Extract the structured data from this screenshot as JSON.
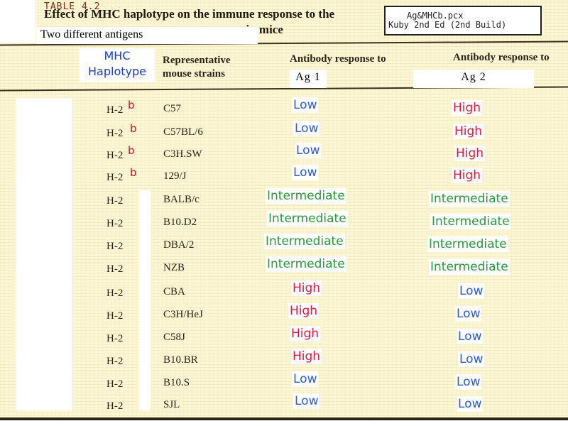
{
  "table": {
    "number": "TABLE 4.2",
    "title_line1": "Effect of MHC haplotype on the immune response to the",
    "title_line2_visible": ". in mice"
  },
  "label_box": {
    "line1": "Ag&MHCb.pcx",
    "line2": "Kuby 2nd Ed (2nd Build)"
  },
  "overlay_label": "Two different antigens",
  "headers": {
    "mhc": [
      "MHC",
      "Haplotype"
    ],
    "strains": [
      "Representative",
      "mouse strains"
    ],
    "antibody_col1": "Antibody response to",
    "antibody_col2": "Antibody response to",
    "ag1": "Ag 1",
    "ag2": "Ag 2"
  },
  "rows": [
    {
      "haplotype": "H-2",
      "sup": "b",
      "strain": "C57",
      "ag1": "Low",
      "ag2": "High"
    },
    {
      "haplotype": "H-2",
      "sup": "b",
      "strain": "C57BL/6",
      "ag1": "Low",
      "ag2": "High"
    },
    {
      "haplotype": "H-2",
      "sup": "b",
      "strain": "C3H.SW",
      "ag1": "Low",
      "ag2": "High"
    },
    {
      "haplotype": "H-2",
      "sup": "b",
      "strain": "129/J",
      "ag1": "Low",
      "ag2": "High"
    },
    {
      "haplotype": "H-2",
      "sup": "",
      "strain": "BALB/c",
      "ag1": "Intermediate",
      "ag2": "Intermediate"
    },
    {
      "haplotype": "H-2",
      "sup": "",
      "strain": "B10.D2",
      "ag1": "Intermediate",
      "ag2": "Intermediate"
    },
    {
      "haplotype": "H-2",
      "sup": "",
      "strain": "DBA/2",
      "ag1": "Intermediate",
      "ag2": "Intermediate"
    },
    {
      "haplotype": "H-2",
      "sup": "",
      "strain": "NZB",
      "ag1": "Intermediate",
      "ag2": "Intermediate"
    },
    {
      "haplotype": "H-2",
      "sup": "",
      "strain": "CBA",
      "ag1": "High",
      "ag2": "Low"
    },
    {
      "haplotype": "H-2",
      "sup": "",
      "strain": "C3H/HeJ",
      "ag1": "High",
      "ag2": "Low"
    },
    {
      "haplotype": "H-2",
      "sup": "",
      "strain": "C58J",
      "ag1": "High",
      "ag2": "Low"
    },
    {
      "haplotype": "H-2",
      "sup": "",
      "strain": "B10.BR",
      "ag1": "High",
      "ag2": "Low"
    },
    {
      "haplotype": "H-2",
      "sup": "",
      "strain": "B10.S",
      "ag1": "Low",
      "ag2": "Low"
    },
    {
      "haplotype": "H-2",
      "sup": "",
      "strain": "SJL",
      "ag1": "Low",
      "ag2": "Low"
    }
  ],
  "colors": {
    "low": "#2b5ce0",
    "high": "#e41a3c",
    "intermediate": "#2a9a3a",
    "paper": "#fdf6d3",
    "superscript": "#d01030"
  }
}
